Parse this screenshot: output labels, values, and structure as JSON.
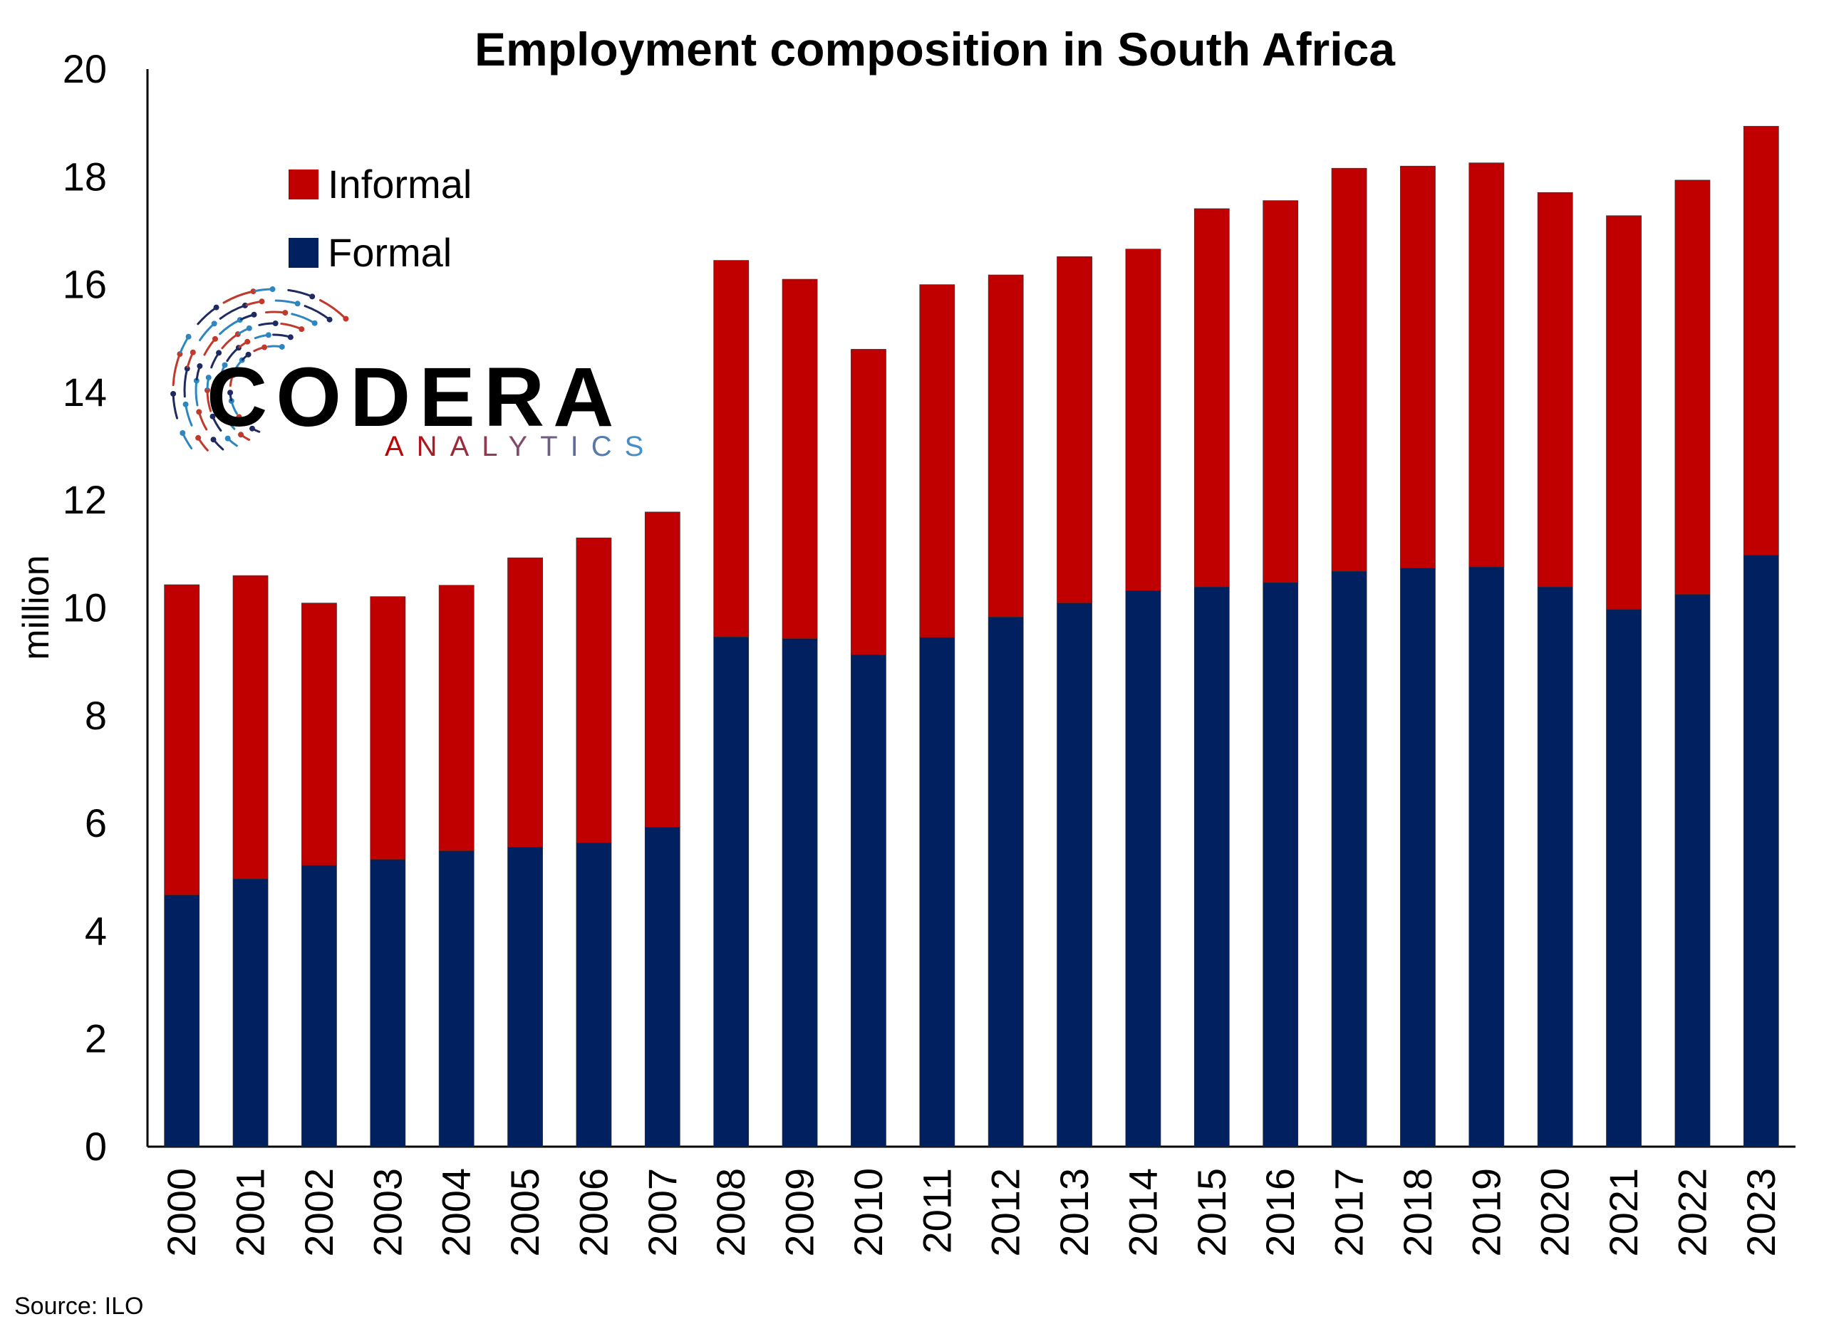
{
  "chart_data": {
    "type": "bar",
    "stacked": true,
    "title": "Employment composition in South Africa",
    "xlabel": "",
    "ylabel": "million",
    "ylim": [
      0,
      20
    ],
    "yticks": [
      0,
      2,
      4,
      6,
      8,
      10,
      12,
      14,
      16,
      18,
      20
    ],
    "grid": false,
    "legend_position": "top-left",
    "categories": [
      "2000",
      "2001",
      "2002",
      "2003",
      "2004",
      "2005",
      "2006",
      "2007",
      "2008",
      "2009",
      "2010",
      "2011",
      "2012",
      "2013",
      "2014",
      "2015",
      "2016",
      "2017",
      "2018",
      "2019",
      "2020",
      "2021",
      "2022",
      "2023"
    ],
    "series": [
      {
        "name": "Formal",
        "color": "#002060",
        "values": [
          4.67,
          4.97,
          5.22,
          5.33,
          5.49,
          5.56,
          5.64,
          5.93,
          9.46,
          9.43,
          9.13,
          9.45,
          9.83,
          10.09,
          10.32,
          10.39,
          10.47,
          10.68,
          10.74,
          10.76,
          10.39,
          9.97,
          10.25,
          10.98
        ]
      },
      {
        "name": "Informal",
        "color": "#C00000",
        "values": [
          5.76,
          5.63,
          4.87,
          4.88,
          4.93,
          5.37,
          5.66,
          5.85,
          6.99,
          6.67,
          5.67,
          6.55,
          6.35,
          6.43,
          6.34,
          7.02,
          7.09,
          7.48,
          7.46,
          7.5,
          7.32,
          7.31,
          7.69,
          7.96
        ]
      }
    ],
    "legend_order": [
      "Informal",
      "Formal"
    ],
    "source": "Source: ILO"
  },
  "logo": {
    "main_text": "CODERA",
    "sub_text": "ANALYTICS",
    "colors": {
      "main": "#000000",
      "sub_start": "#C00000",
      "sub_end": "#3A9BD9",
      "ring_red": "#C0392B",
      "ring_blue": "#2E86C1",
      "ring_dark": "#1F2A60"
    }
  }
}
